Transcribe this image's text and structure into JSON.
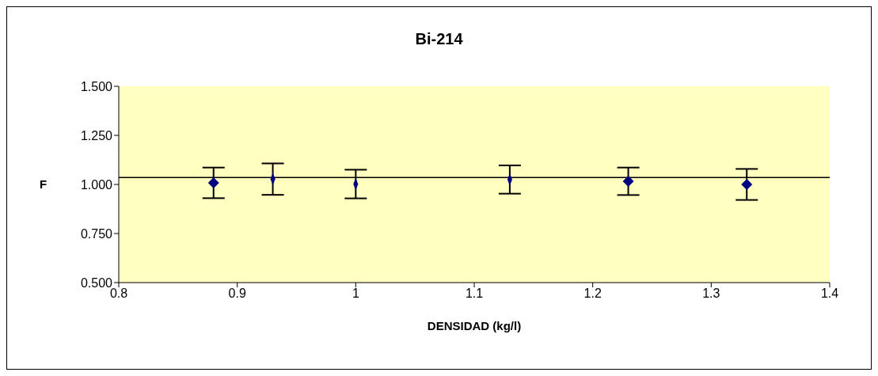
{
  "chart_data": {
    "type": "scatter",
    "title": "Bi-214",
    "xlabel": "DENSIDAD (kg/l)",
    "ylabel": "F",
    "xlim": [
      0.8,
      1.4
    ],
    "xticks": [
      0.8,
      0.9,
      1,
      1.1,
      1.2,
      1.3,
      1.4
    ],
    "ylim": [
      0.5,
      1.5
    ],
    "yticks": [
      {
        "value": 0.5,
        "label": "0.500"
      },
      {
        "value": 0.75,
        "label": "0.750"
      },
      {
        "value": 1,
        "label": "1.000"
      },
      {
        "value": 1.25,
        "label": "1.250"
      },
      {
        "value": 1.5,
        "label": "1.500"
      }
    ],
    "grid": false,
    "legend": false,
    "series": [
      {
        "color": "#000080",
        "marker": "diamond",
        "x": [
          0.88,
          1.23,
          1.33
        ],
        "values": [
          1.008,
          1.016,
          1.0
        ],
        "errors": [
          0.078,
          0.07,
          0.079
        ]
      },
      {
        "color": "#000080",
        "x": [
          0.93,
          1.0,
          1.13
        ],
        "values": [
          1.027,
          1.002,
          1.025
        ],
        "errors": [
          0.08,
          0.073,
          0.072
        ]
      }
    ],
    "ref_lines": [
      {
        "axis": "y",
        "value": 1.035,
        "color": "#000000"
      }
    ]
  }
}
